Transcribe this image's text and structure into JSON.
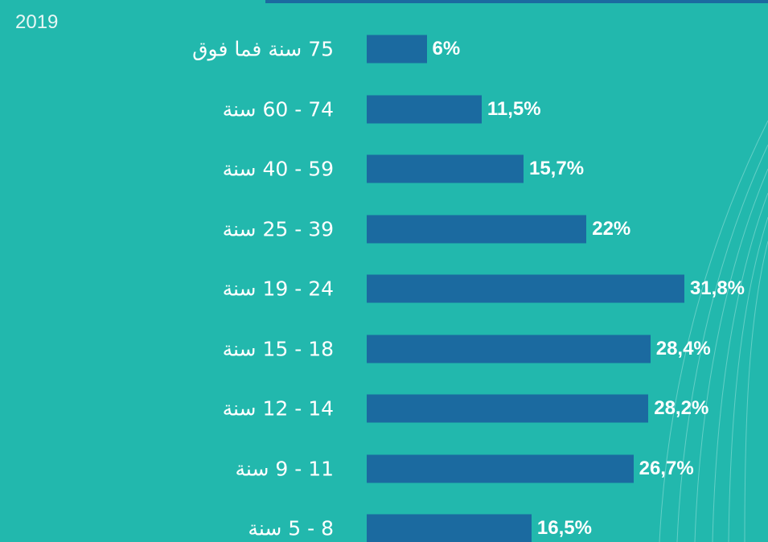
{
  "chart_data": {
    "type": "bar",
    "orientation": "horizontal",
    "subtitle": "2019",
    "categories": [
      "75 سنة فما فوق",
      "74 - 60 سنة",
      "59 - 40 سنة",
      "39 - 25 سنة",
      "24 - 19 سنة",
      "18 - 15 سنة",
      "14 - 12 سنة",
      "11 - 9 سنة",
      "8 - 5 سنة"
    ],
    "values": [
      6,
      11.5,
      15.7,
      22,
      31.8,
      28.4,
      28.2,
      26.7,
      16.5
    ],
    "value_labels": [
      "6%",
      "11,5%",
      "15,7%",
      "22%",
      "31,8%",
      "28,4%",
      "28,2%",
      "26,7%",
      "16,5%"
    ],
    "color": "#1b6aa0"
  }
}
